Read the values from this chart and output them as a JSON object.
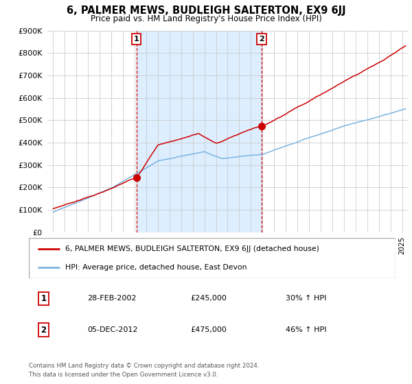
{
  "title": "6, PALMER MEWS, BUDLEIGH SALTERTON, EX9 6JJ",
  "subtitle": "Price paid vs. HM Land Registry's House Price Index (HPI)",
  "legend_line1": "6, PALMER MEWS, BUDLEIGH SALTERTON, EX9 6JJ (detached house)",
  "legend_line2": "HPI: Average price, detached house, East Devon",
  "annotation1_date": "28-FEB-2002",
  "annotation1_price": "£245,000",
  "annotation1_hpi": "30% ↑ HPI",
  "annotation2_date": "05-DEC-2012",
  "annotation2_price": "£475,000",
  "annotation2_hpi": "46% ↑ HPI",
  "footer1": "Contains HM Land Registry data © Crown copyright and database right 2024.",
  "footer2": "This data is licensed under the Open Government Licence v3.0.",
  "sale1_x": 2002.16,
  "sale1_y": 245000,
  "sale2_x": 2012.92,
  "sale2_y": 475000,
  "hpi_color": "#7ab4e0",
  "price_color": "#cc0000",
  "vline_color": "#cc0000",
  "annotation_box_color": "#cc0000",
  "shade_color": "#ddeeff",
  "ylim": [
    0,
    900000
  ],
  "xlim_start": 1994.5,
  "xlim_end": 2025.5,
  "bg_color": "#ffffff",
  "grid_color": "#cccccc"
}
